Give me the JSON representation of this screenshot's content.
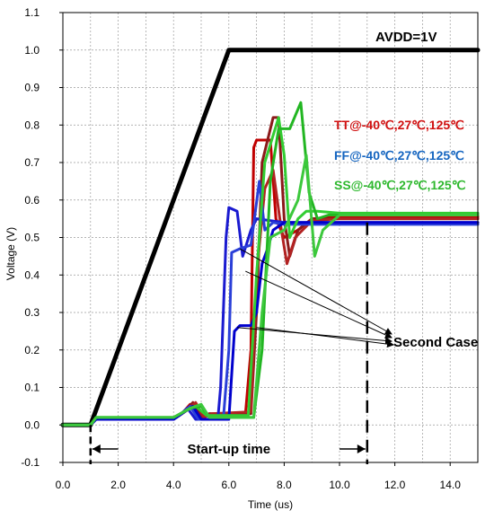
{
  "chart_data": {
    "type": "line",
    "xlabel": "Time (us)",
    "ylabel": "Voltage (V)",
    "xlim": [
      0,
      15
    ],
    "ylim": [
      -0.1,
      1.1
    ],
    "x_ticks": [
      "0.0",
      "2.0",
      "4.0",
      "6.0",
      "8.0",
      "10.0",
      "12.0",
      "14.0"
    ],
    "y_ticks": [
      "-0.1",
      "0.0",
      "0.1",
      "0.2",
      "0.3",
      "0.4",
      "0.5",
      "0.6",
      "0.7",
      "0.8",
      "0.9",
      "1.0",
      "1.1"
    ],
    "grid": true,
    "series": [
      {
        "group": "AVDD",
        "color": "#000000",
        "width": 5,
        "points": [
          [
            0,
            0
          ],
          [
            1,
            0
          ],
          [
            6,
            1.0
          ],
          [
            15,
            1.0
          ]
        ]
      },
      {
        "group": "TT",
        "color": "#c00000",
        "width": 3,
        "points": [
          [
            0,
            0
          ],
          [
            1,
            0
          ],
          [
            1.2,
            0.015
          ],
          [
            4.0,
            0.015
          ],
          [
            4.3,
            0.03
          ],
          [
            4.6,
            0.055
          ],
          [
            4.9,
            0.02
          ],
          [
            5.3,
            0.03
          ],
          [
            6.6,
            0.03
          ],
          [
            6.8,
            0.2
          ],
          [
            6.9,
            0.74
          ],
          [
            7.0,
            0.76
          ],
          [
            7.5,
            0.76
          ],
          [
            7.7,
            0.55
          ],
          [
            8.0,
            0.5
          ],
          [
            8.5,
            0.52
          ],
          [
            9.0,
            0.55
          ],
          [
            10.0,
            0.555
          ],
          [
            15,
            0.555
          ]
        ]
      },
      {
        "group": "TT",
        "color": "#8b1a1a",
        "width": 3,
        "points": [
          [
            0,
            0
          ],
          [
            1,
            0
          ],
          [
            1.2,
            0.015
          ],
          [
            4.0,
            0.015
          ],
          [
            4.4,
            0.035
          ],
          [
            4.7,
            0.06
          ],
          [
            5.0,
            0.02
          ],
          [
            5.3,
            0.03
          ],
          [
            6.8,
            0.03
          ],
          [
            7.0,
            0.3
          ],
          [
            7.2,
            0.7
          ],
          [
            7.6,
            0.82
          ],
          [
            7.8,
            0.82
          ],
          [
            8.0,
            0.55
          ],
          [
            8.2,
            0.45
          ],
          [
            8.5,
            0.52
          ],
          [
            9.0,
            0.55
          ],
          [
            10.0,
            0.55
          ],
          [
            15,
            0.55
          ]
        ]
      },
      {
        "group": "TT",
        "color": "#b22222",
        "width": 3,
        "points": [
          [
            0,
            0
          ],
          [
            1,
            0
          ],
          [
            1.2,
            0.015
          ],
          [
            4.0,
            0.015
          ],
          [
            4.5,
            0.04
          ],
          [
            4.8,
            0.06
          ],
          [
            5.1,
            0.02
          ],
          [
            5.4,
            0.03
          ],
          [
            6.8,
            0.035
          ],
          [
            7.0,
            0.4
          ],
          [
            7.3,
            0.63
          ],
          [
            7.6,
            0.68
          ],
          [
            7.9,
            0.52
          ],
          [
            8.1,
            0.43
          ],
          [
            8.4,
            0.5
          ],
          [
            9.0,
            0.545
          ],
          [
            10.0,
            0.55
          ],
          [
            15,
            0.55
          ]
        ]
      },
      {
        "group": "FF",
        "color": "#1a1ad0",
        "width": 3,
        "points": [
          [
            0,
            0
          ],
          [
            1,
            0
          ],
          [
            1.2,
            0.015
          ],
          [
            4.0,
            0.015
          ],
          [
            4.2,
            0.025
          ],
          [
            4.5,
            0.045
          ],
          [
            4.8,
            0.015
          ],
          [
            5.6,
            0.015
          ],
          [
            5.7,
            0.1
          ],
          [
            5.9,
            0.5
          ],
          [
            6.0,
            0.58
          ],
          [
            6.3,
            0.57
          ],
          [
            6.5,
            0.45
          ],
          [
            6.8,
            0.52
          ],
          [
            7.0,
            0.55
          ],
          [
            8.0,
            0.54
          ],
          [
            15,
            0.54
          ]
        ]
      },
      {
        "group": "FF",
        "color": "#2a3fd8",
        "width": 3,
        "points": [
          [
            0,
            0
          ],
          [
            1,
            0
          ],
          [
            1.2,
            0.015
          ],
          [
            4.0,
            0.015
          ],
          [
            4.3,
            0.03
          ],
          [
            4.6,
            0.05
          ],
          [
            4.9,
            0.015
          ],
          [
            5.8,
            0.015
          ],
          [
            6.0,
            0.2
          ],
          [
            6.1,
            0.46
          ],
          [
            6.4,
            0.47
          ],
          [
            6.8,
            0.48
          ],
          [
            7.1,
            0.65
          ],
          [
            7.3,
            0.52
          ],
          [
            7.6,
            0.54
          ],
          [
            8.0,
            0.535
          ],
          [
            15,
            0.535
          ]
        ]
      },
      {
        "group": "FF",
        "color": "#0000cd",
        "width": 3,
        "points": [
          [
            0,
            0
          ],
          [
            1,
            0
          ],
          [
            1.2,
            0.015
          ],
          [
            4.0,
            0.015
          ],
          [
            4.4,
            0.035
          ],
          [
            4.7,
            0.05
          ],
          [
            5.0,
            0.015
          ],
          [
            6.0,
            0.015
          ],
          [
            6.2,
            0.25
          ],
          [
            6.4,
            0.265
          ],
          [
            6.8,
            0.265
          ],
          [
            7.0,
            0.3
          ],
          [
            7.2,
            0.43
          ],
          [
            7.4,
            0.47
          ],
          [
            7.6,
            0.52
          ],
          [
            8.0,
            0.54
          ],
          [
            15,
            0.54
          ]
        ]
      },
      {
        "group": "SS",
        "color": "#32cd32",
        "width": 3,
        "points": [
          [
            0,
            0
          ],
          [
            1,
            0
          ],
          [
            1.2,
            0.02
          ],
          [
            4.0,
            0.02
          ],
          [
            4.5,
            0.04
          ],
          [
            4.8,
            0.05
          ],
          [
            5.2,
            0.025
          ],
          [
            6.7,
            0.025
          ],
          [
            7.0,
            0.4
          ],
          [
            7.3,
            0.7
          ],
          [
            7.8,
            0.82
          ],
          [
            8.0,
            0.72
          ],
          [
            8.2,
            0.5
          ],
          [
            8.5,
            0.55
          ],
          [
            8.8,
            0.57
          ],
          [
            9.2,
            0.57
          ],
          [
            10.0,
            0.565
          ],
          [
            15,
            0.565
          ]
        ]
      },
      {
        "group": "SS",
        "color": "#22b622",
        "width": 3,
        "points": [
          [
            0,
            0
          ],
          [
            1,
            0
          ],
          [
            1.2,
            0.02
          ],
          [
            4.0,
            0.02
          ],
          [
            4.6,
            0.045
          ],
          [
            5.0,
            0.05
          ],
          [
            5.3,
            0.02
          ],
          [
            6.9,
            0.02
          ],
          [
            7.2,
            0.2
          ],
          [
            7.5,
            0.65
          ],
          [
            7.8,
            0.79
          ],
          [
            8.2,
            0.79
          ],
          [
            8.6,
            0.86
          ],
          [
            8.9,
            0.62
          ],
          [
            9.2,
            0.55
          ],
          [
            9.6,
            0.56
          ],
          [
            10.5,
            0.56
          ],
          [
            15,
            0.56
          ]
        ]
      },
      {
        "group": "SS",
        "color": "#3cc83c",
        "width": 3,
        "points": [
          [
            0,
            0
          ],
          [
            1,
            0
          ],
          [
            1.2,
            0.02
          ],
          [
            4.0,
            0.02
          ],
          [
            4.6,
            0.045
          ],
          [
            5.0,
            0.055
          ],
          [
            5.3,
            0.02
          ],
          [
            6.9,
            0.02
          ],
          [
            7.2,
            0.3
          ],
          [
            7.5,
            0.5
          ],
          [
            8.0,
            0.52
          ],
          [
            8.5,
            0.6
          ],
          [
            8.8,
            0.72
          ],
          [
            9.1,
            0.45
          ],
          [
            9.4,
            0.52
          ],
          [
            10.0,
            0.56
          ],
          [
            15,
            0.56
          ]
        ]
      }
    ],
    "avdd_label": "AVDD=1V",
    "legend": [
      {
        "prefix": "TT@-40",
        "rest": "℃,27℃,125℃",
        "prefix_color": "#d01010",
        "rest_color": "#d01010"
      },
      {
        "prefix": "FF@-40",
        "rest": "℃,27℃,125℃",
        "prefix_color": "#1565c0",
        "rest_color": "#1565c0"
      },
      {
        "prefix": "SS@-40",
        "rest": "℃,27℃,125℃",
        "prefix_color": "#2eb82e",
        "rest_color": "#2eb82e"
      }
    ],
    "annotations": {
      "second_case": "Second Case",
      "startup": "Start-up time",
      "startup_range": [
        1.0,
        11.0
      ]
    }
  }
}
